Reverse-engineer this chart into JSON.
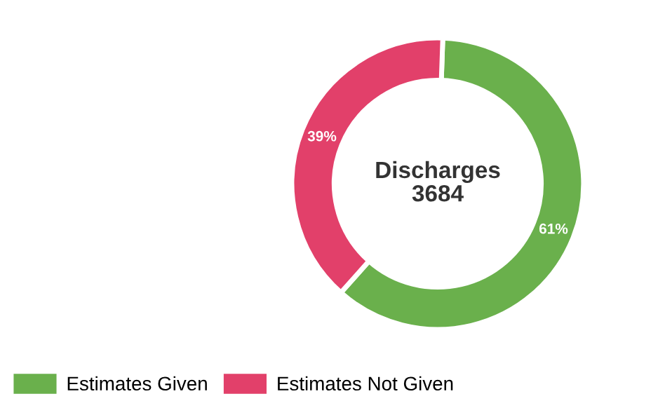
{
  "chart_data": {
    "type": "donut",
    "title": "Discharges",
    "annotations": [
      "3684"
    ],
    "categories": [
      "Estimates Given",
      "Estimates Not Given"
    ],
    "values": [
      61,
      39
    ],
    "colors": [
      "#6ab04c",
      "#e2406a"
    ],
    "value_labels": [
      "61%",
      "39%"
    ],
    "legend": "bottom left"
  }
}
